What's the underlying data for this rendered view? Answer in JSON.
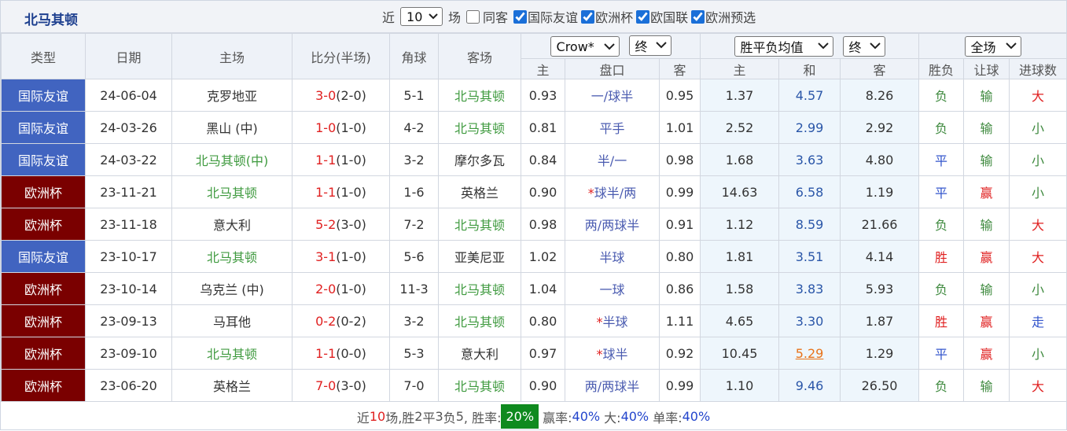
{
  "header": {
    "title": "北马其顿",
    "recent_prefix": "近",
    "recent_count": "10",
    "recent_suffix": "场",
    "same_away": "同客",
    "filters": [
      "国际友谊",
      "欧洲杯",
      "欧国联",
      "欧洲预选"
    ]
  },
  "table": {
    "columns": [
      "类型",
      "日期",
      "主场",
      "比分(半场)",
      "角球",
      "客场"
    ],
    "handicap_company": "Crow*",
    "handicap_stage": "终",
    "odds_type": "胜平负均值",
    "odds_stage": "终",
    "result_scope": "全场",
    "sub_columns": [
      "主",
      "盘口",
      "客",
      "主",
      "和",
      "客",
      "胜负",
      "让球",
      "进球数"
    ],
    "rows": [
      {
        "type": "国际友谊",
        "type_color": "#4164c0",
        "date": "24-06-04",
        "home": "克罗地亚",
        "score": "3-0",
        "half": "(2-0)",
        "corners": "5-1",
        "away": "北马其顿",
        "away_color": "#3f9a3f",
        "h": "0.93",
        "handicap": "一/球半",
        "a": "0.95",
        "w": "1.37",
        "d": "4.57",
        "l": "8.26",
        "result": {
          "text": "负",
          "color": "#3f8a3f"
        },
        "cover": {
          "text": "输",
          "color": "#3f8a3f"
        },
        "goals": {
          "text": "大",
          "color": "#e02020"
        }
      },
      {
        "type": "国际友谊",
        "type_color": "#4164c0",
        "date": "24-03-26",
        "home": "黑山 (中)",
        "score": "1-0",
        "half": "(1-0)",
        "corners": "4-2",
        "away": "北马其顿",
        "away_color": "#3f9a3f",
        "h": "0.81",
        "handicap": "平手",
        "a": "1.01",
        "w": "2.52",
        "d": "2.99",
        "l": "2.92",
        "result": {
          "text": "负",
          "color": "#3f8a3f"
        },
        "cover": {
          "text": "输",
          "color": "#3f8a3f"
        },
        "goals": {
          "text": "小",
          "color": "#3f8a3f"
        }
      },
      {
        "type": "国际友谊",
        "type_color": "#4164c0",
        "date": "24-03-22",
        "home": "北马其顿(中)",
        "home_color": "#3f9a3f",
        "score": "1-1",
        "half": "(1-0)",
        "corners": "3-2",
        "away": "摩尔多瓦",
        "h": "0.84",
        "handicap": "半/一",
        "a": "0.98",
        "w": "1.68",
        "d": "3.63",
        "l": "4.80",
        "result": {
          "text": "平",
          "color": "#3355cc"
        },
        "cover": {
          "text": "输",
          "color": "#3f8a3f"
        },
        "goals": {
          "text": "小",
          "color": "#3f8a3f"
        }
      },
      {
        "type": "欧洲杯",
        "type_color": "#7a0000",
        "date": "23-11-21",
        "home": "北马其顿",
        "home_color": "#3f9a3f",
        "score": "1-1",
        "half": "(1-0)",
        "corners": "1-6",
        "away": "英格兰",
        "h": "0.90",
        "handicap_mark": "*",
        "handicap": "球半/两",
        "a": "0.99",
        "w": "14.63",
        "d": "6.58",
        "l": "1.19",
        "result": {
          "text": "平",
          "color": "#3355cc"
        },
        "cover": {
          "text": "赢",
          "color": "#e02020"
        },
        "goals": {
          "text": "小",
          "color": "#3f8a3f"
        }
      },
      {
        "type": "欧洲杯",
        "type_color": "#7a0000",
        "date": "23-11-18",
        "home": "意大利",
        "score": "5-2",
        "half": "(3-0)",
        "corners": "7-2",
        "away": "北马其顿",
        "away_color": "#3f9a3f",
        "h": "0.98",
        "handicap": "两/两球半",
        "a": "0.91",
        "w": "1.12",
        "d": "8.59",
        "l": "21.66",
        "result": {
          "text": "负",
          "color": "#3f8a3f"
        },
        "cover": {
          "text": "输",
          "color": "#3f8a3f"
        },
        "goals": {
          "text": "大",
          "color": "#e02020"
        }
      },
      {
        "type": "国际友谊",
        "type_color": "#4164c0",
        "date": "23-10-17",
        "home": "北马其顿",
        "home_color": "#3f9a3f",
        "score": "3-1",
        "half": "(1-0)",
        "corners": "5-6",
        "away": "亚美尼亚",
        "h": "1.02",
        "handicap": "半球",
        "a": "0.80",
        "w": "1.81",
        "d": "3.51",
        "l": "4.14",
        "result": {
          "text": "胜",
          "color": "#e02020"
        },
        "cover": {
          "text": "赢",
          "color": "#e02020"
        },
        "goals": {
          "text": "大",
          "color": "#e02020"
        }
      },
      {
        "type": "欧洲杯",
        "type_color": "#7a0000",
        "date": "23-10-14",
        "home": "乌克兰 (中)",
        "score": "2-0",
        "half": "(1-0)",
        "corners": "11-3",
        "away": "北马其顿",
        "away_color": "#3f9a3f",
        "h": "1.04",
        "handicap": "一球",
        "a": "0.86",
        "w": "1.58",
        "d": "3.83",
        "l": "5.93",
        "result": {
          "text": "负",
          "color": "#3f8a3f"
        },
        "cover": {
          "text": "输",
          "color": "#3f8a3f"
        },
        "goals": {
          "text": "小",
          "color": "#3f8a3f"
        }
      },
      {
        "type": "欧洲杯",
        "type_color": "#7a0000",
        "date": "23-09-13",
        "home": "马耳他",
        "score": "0-2",
        "half": "(0-2)",
        "corners": "3-2",
        "away": "北马其顿",
        "away_color": "#3f9a3f",
        "h": "0.80",
        "handicap_mark": "*",
        "handicap": "半球",
        "a": "1.11",
        "w": "4.65",
        "d": "3.30",
        "l": "1.87",
        "result": {
          "text": "胜",
          "color": "#e02020"
        },
        "cover": {
          "text": "赢",
          "color": "#e02020"
        },
        "goals": {
          "text": "走",
          "color": "#3355cc"
        }
      },
      {
        "type": "欧洲杯",
        "type_color": "#7a0000",
        "date": "23-09-10",
        "home": "北马其顿",
        "home_color": "#3f9a3f",
        "score": "1-1",
        "half": "(0-0)",
        "corners": "5-3",
        "away": "意大利",
        "h": "0.97",
        "handicap_mark": "*",
        "handicap": "球半",
        "a": "0.92",
        "w": "10.45",
        "d": "5.29",
        "d_color": "#e8731a",
        "l": "1.29",
        "result": {
          "text": "平",
          "color": "#3355cc"
        },
        "cover": {
          "text": "赢",
          "color": "#e02020"
        },
        "goals": {
          "text": "小",
          "color": "#3f8a3f"
        }
      },
      {
        "type": "欧洲杯",
        "type_color": "#7a0000",
        "date": "23-06-20",
        "home": "英格兰",
        "score": "7-0",
        "half": "(3-0)",
        "corners": "7-0",
        "away": "北马其顿",
        "away_color": "#3f9a3f",
        "h": "0.90",
        "handicap": "两/两球半",
        "a": "0.99",
        "w": "1.10",
        "d": "9.46",
        "l": "26.50",
        "result": {
          "text": "负",
          "color": "#3f8a3f"
        },
        "cover": {
          "text": "输",
          "color": "#3f8a3f"
        },
        "goals": {
          "text": "大",
          "color": "#e02020"
        }
      }
    ]
  },
  "footer": [
    {
      "text": "近"
    },
    {
      "text": "10",
      "color": "#e02020"
    },
    {
      "text": "场,胜"
    },
    {
      "text": "2"
    },
    {
      "text": "平"
    },
    {
      "text": "3"
    },
    {
      "text": "负"
    },
    {
      "text": "5"
    },
    {
      "text": ", 胜率:"
    },
    {
      "text": "20%",
      "color": "#ffffff",
      "background": "#0f8a1f"
    },
    {
      "text": " 赢率:"
    },
    {
      "text": "40%",
      "color": "#2244cc"
    },
    {
      "text": " 大:"
    },
    {
      "text": "40%",
      "color": "#2244cc"
    },
    {
      "text": " 单率:"
    },
    {
      "text": "40%",
      "color": "#2244cc"
    }
  ]
}
